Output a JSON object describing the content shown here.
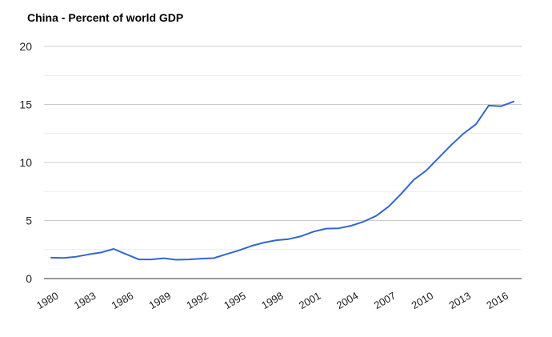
{
  "chart_data": {
    "type": "line",
    "title": "China - Percent of world GDP",
    "xlabel": "",
    "ylabel": "",
    "x": [
      1980,
      1981,
      1982,
      1983,
      1984,
      1985,
      1986,
      1987,
      1988,
      1989,
      1990,
      1991,
      1992,
      1993,
      1994,
      1995,
      1996,
      1997,
      1998,
      1999,
      2000,
      2001,
      2002,
      2003,
      2004,
      2005,
      2006,
      2007,
      2008,
      2009,
      2010,
      2011,
      2012,
      2013,
      2014,
      2015,
      2016,
      2017
    ],
    "series": [
      {
        "name": "China - Percent of world GDP",
        "color": "#3366cc",
        "values": [
          1.8,
          1.78,
          1.88,
          2.08,
          2.25,
          2.55,
          2.1,
          1.65,
          1.65,
          1.75,
          1.62,
          1.65,
          1.72,
          1.76,
          2.1,
          2.42,
          2.8,
          3.1,
          3.3,
          3.4,
          3.65,
          4.05,
          4.3,
          4.33,
          4.55,
          4.9,
          5.4,
          6.2,
          7.3,
          8.5,
          9.3,
          10.4,
          11.5,
          12.5,
          13.3,
          14.9,
          14.85,
          15.25
        ]
      }
    ],
    "ylim": [
      0,
      20
    ],
    "yticks": [
      0,
      5,
      10,
      15,
      20
    ],
    "xtick_labels": [
      "1980",
      "1983",
      "1986",
      "1989",
      "1992",
      "1995",
      "1998",
      "2001",
      "2004",
      "2007",
      "2010",
      "2013",
      "2016"
    ],
    "grid": true,
    "legend": "none",
    "colors": {
      "line": "#3366cc",
      "grid": "#cccccc",
      "baseline": "#333333",
      "text": "#222222"
    }
  }
}
